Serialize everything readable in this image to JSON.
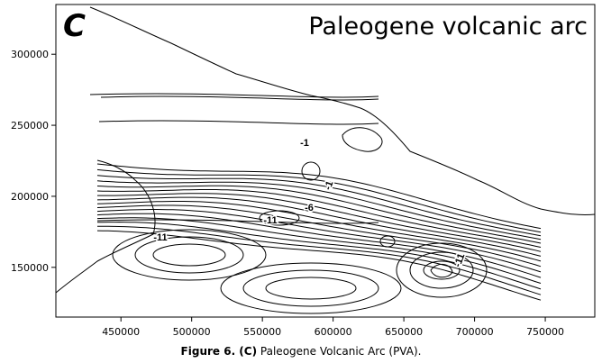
{
  "figure": {
    "panel": "C",
    "title": "Paleogene volcanic arc",
    "xlim": [
      404000,
      785000
    ],
    "ylim": [
      115000,
      335000
    ],
    "xticks": [
      450000,
      500000,
      550000,
      600000,
      650000,
      700000,
      750000
    ],
    "yticks": [
      150000,
      200000,
      250000,
      300000
    ],
    "contour_labels": [
      "-1",
      "-1",
      "-6",
      "-11",
      "-11",
      "-11"
    ]
  },
  "caption": {
    "label": "Figure 6. (C)",
    "text": "Paleogene Volcanic Arc (PVA)."
  }
}
